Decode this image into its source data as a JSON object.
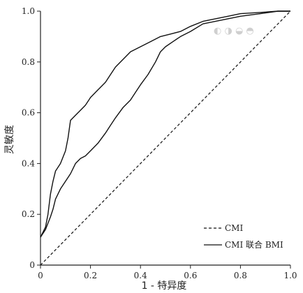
{
  "chart_data": {
    "type": "line",
    "title": "",
    "xlabel": "1 - 特异度",
    "ylabel": "灵敏度",
    "xlim": [
      0,
      1
    ],
    "ylim": [
      0,
      1
    ],
    "x_ticks": [
      "0",
      "0.2",
      "0.4",
      "0.6",
      "0.8",
      "1.0"
    ],
    "y_ticks": [
      "0",
      "0.2",
      "0.4",
      "0.6",
      "0.8",
      "1.0"
    ],
    "grid": false,
    "legend_position": "bottom-right",
    "diagonal_reference": true,
    "series": [
      {
        "name": "CMI",
        "style": "dashed",
        "points": [
          [
            0,
            0
          ],
          [
            1,
            1
          ]
        ]
      },
      {
        "name": "CMI 联合 BMI",
        "style": "solid",
        "points": [
          [
            0,
            0.11
          ],
          [
            0.02,
            0.15
          ],
          [
            0.03,
            0.2
          ],
          [
            0.04,
            0.28
          ],
          [
            0.05,
            0.33
          ],
          [
            0.06,
            0.37
          ],
          [
            0.08,
            0.4
          ],
          [
            0.1,
            0.45
          ],
          [
            0.11,
            0.5
          ],
          [
            0.12,
            0.57
          ],
          [
            0.14,
            0.59
          ],
          [
            0.16,
            0.61
          ],
          [
            0.18,
            0.63
          ],
          [
            0.2,
            0.66
          ],
          [
            0.23,
            0.69
          ],
          [
            0.26,
            0.72
          ],
          [
            0.28,
            0.75
          ],
          [
            0.3,
            0.78
          ],
          [
            0.33,
            0.81
          ],
          [
            0.36,
            0.84
          ],
          [
            0.4,
            0.86
          ],
          [
            0.44,
            0.88
          ],
          [
            0.48,
            0.9
          ],
          [
            0.52,
            0.91
          ],
          [
            0.56,
            0.92
          ],
          [
            0.6,
            0.94
          ],
          [
            0.65,
            0.96
          ],
          [
            0.7,
            0.97
          ],
          [
            0.75,
            0.98
          ],
          [
            0.8,
            0.99
          ],
          [
            0.88,
            0.995
          ],
          [
            0.95,
            1.0
          ],
          [
            1,
            1
          ]
        ]
      },
      {
        "name": "",
        "style": "solid",
        "points": [
          [
            0,
            0.11
          ],
          [
            0.02,
            0.14
          ],
          [
            0.04,
            0.19
          ],
          [
            0.05,
            0.22
          ],
          [
            0.06,
            0.26
          ],
          [
            0.08,
            0.3
          ],
          [
            0.1,
            0.33
          ],
          [
            0.12,
            0.36
          ],
          [
            0.14,
            0.4
          ],
          [
            0.16,
            0.42
          ],
          [
            0.18,
            0.43
          ],
          [
            0.2,
            0.45
          ],
          [
            0.23,
            0.48
          ],
          [
            0.26,
            0.52
          ],
          [
            0.28,
            0.55
          ],
          [
            0.3,
            0.58
          ],
          [
            0.33,
            0.62
          ],
          [
            0.36,
            0.65
          ],
          [
            0.38,
            0.68
          ],
          [
            0.4,
            0.71
          ],
          [
            0.43,
            0.75
          ],
          [
            0.46,
            0.8
          ],
          [
            0.48,
            0.84
          ],
          [
            0.5,
            0.86
          ],
          [
            0.53,
            0.88
          ],
          [
            0.56,
            0.9
          ],
          [
            0.6,
            0.92
          ],
          [
            0.65,
            0.95
          ],
          [
            0.7,
            0.96
          ],
          [
            0.75,
            0.97
          ],
          [
            0.8,
            0.98
          ],
          [
            0.88,
            0.99
          ],
          [
            0.95,
            1.0
          ],
          [
            1,
            1
          ]
        ]
      }
    ]
  }
}
